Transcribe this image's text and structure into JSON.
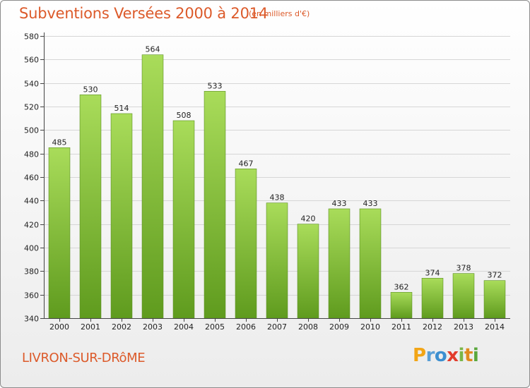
{
  "title": "Subventions Versées 2000 à 2014",
  "units_note": "(en milliers d'€)",
  "commune": "LIVRON-SUR-DRôME",
  "logo": {
    "letters": [
      "P",
      "r",
      "o",
      "x",
      "i",
      "t",
      "i"
    ],
    "colors": [
      "#f2a516",
      "#5a9fd6",
      "#3c8fd0",
      "#e23c2c",
      "#7ab648",
      "#e08a1e",
      "#5aa83c"
    ]
  },
  "colors": {
    "bar_top": "#a9dc5a",
    "bar_bottom": "#5f9b1e",
    "accent_text": "#dc5a2a"
  },
  "chart_data": {
    "type": "bar",
    "categories": [
      "2000",
      "2001",
      "2002",
      "2003",
      "2004",
      "2005",
      "2006",
      "2007",
      "2008",
      "2009",
      "2010",
      "2011",
      "2012",
      "2013",
      "2014"
    ],
    "values": [
      485,
      530,
      514,
      564,
      508,
      533,
      467,
      438,
      420,
      433,
      433,
      362,
      374,
      378,
      372
    ],
    "title": "Subventions Versées 2000 à 2014",
    "ylim": [
      340,
      580
    ],
    "yticks": [
      340,
      360,
      380,
      400,
      420,
      440,
      460,
      480,
      500,
      520,
      540,
      560,
      580
    ],
    "grid": true,
    "legend": "none"
  }
}
